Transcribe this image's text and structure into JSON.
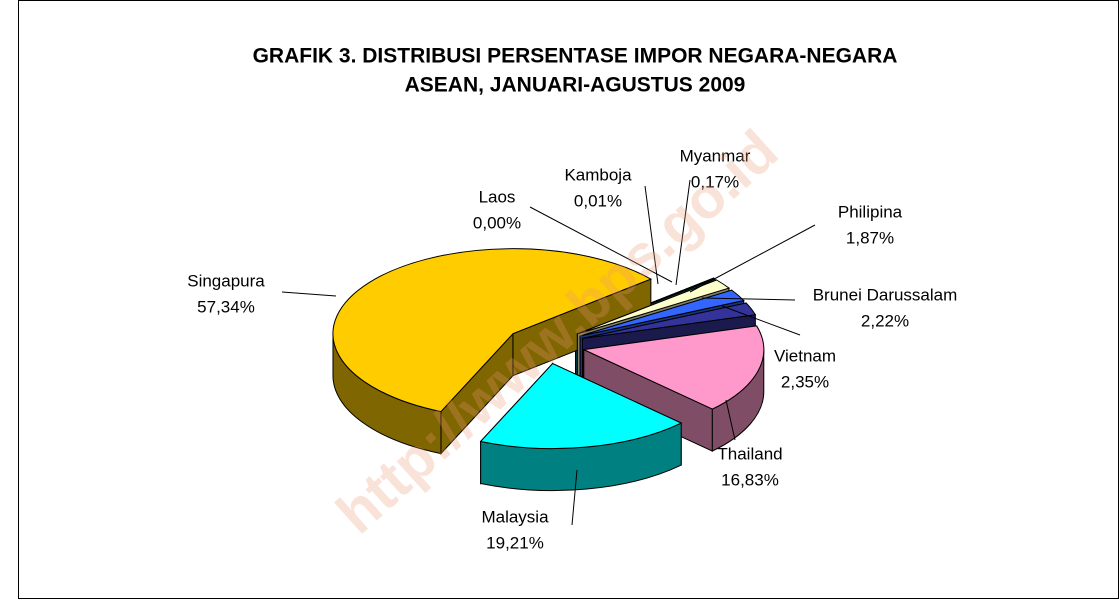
{
  "chart_data": {
    "type": "pie3d",
    "title": "GRAFIK 3. DISTRIBUSI PERSENTASE IMPOR NEGARA-NEGARA",
    "subtitle": "ASEAN, JANUARI-AGUSTUS 2009",
    "watermark": "http://www.bps.go.id",
    "categories": [
      "Laos",
      "Kamboja",
      "Myanmar",
      "Philipina",
      "Brunei Darussalam",
      "Vietnam",
      "Thailand",
      "Malaysia",
      "Singapura"
    ],
    "values": [
      0.0,
      0.01,
      0.17,
      1.87,
      2.22,
      2.35,
      16.83,
      19.21,
      57.34
    ],
    "value_labels": [
      "0,00%",
      "0,01%",
      "0,17%",
      "1,87%",
      "2,22%",
      "2,35%",
      "16,83%",
      "19,21%",
      "57,34%"
    ],
    "colors": [
      "#99ccff",
      "#000080",
      "#00ccff",
      "#ffffcc",
      "#3366ff",
      "#333399",
      "#ff99cc",
      "#00ffff",
      "#ffcc00"
    ]
  }
}
